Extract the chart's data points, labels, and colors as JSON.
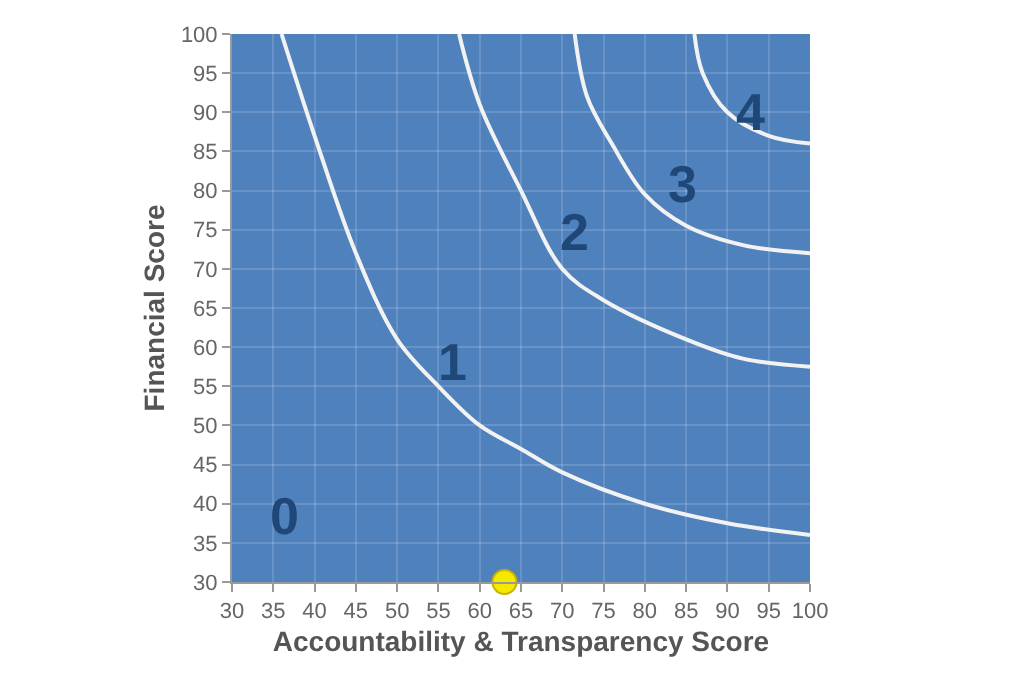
{
  "chart_data": {
    "type": "scatter",
    "xlabel": "Accountability & Transparency Score",
    "ylabel": "Financial Score",
    "xlim": [
      30,
      100
    ],
    "ylim": [
      30,
      100
    ],
    "xticks": [
      30,
      35,
      40,
      45,
      50,
      55,
      60,
      65,
      70,
      75,
      80,
      85,
      90,
      95,
      100
    ],
    "yticks": [
      30,
      35,
      40,
      45,
      50,
      55,
      60,
      65,
      70,
      75,
      80,
      85,
      90,
      95,
      100
    ],
    "grid": true,
    "series": [
      {
        "type": "line",
        "color": "#f2f2f2",
        "x": [
          36,
          40,
          45,
          50,
          55,
          60,
          65,
          70,
          80,
          90,
          100
        ],
        "values": [
          100,
          87,
          72,
          61,
          55,
          50,
          47,
          44,
          40,
          37.5,
          36
        ]
      },
      {
        "type": "line",
        "color": "#f2f2f2",
        "x": [
          57.5,
          60,
          65,
          70,
          75,
          85,
          92,
          100
        ],
        "values": [
          100,
          91,
          80,
          70,
          66,
          61,
          58.5,
          57.5
        ]
      },
      {
        "type": "line",
        "color": "#f2f2f2",
        "x": [
          71.5,
          73,
          76,
          80,
          85,
          92,
          100
        ],
        "values": [
          100,
          92,
          86,
          79.5,
          75.5,
          73,
          72
        ]
      },
      {
        "type": "line",
        "color": "#f2f2f2",
        "x": [
          86,
          87,
          90,
          95,
          100
        ],
        "values": [
          100,
          95,
          90,
          87,
          86
        ]
      },
      {
        "color": "#f5e900",
        "x": [
          63
        ],
        "values": [
          30
        ]
      }
    ],
    "annotations": [
      "0",
      "1",
      "2",
      "3",
      "4"
    ]
  }
}
